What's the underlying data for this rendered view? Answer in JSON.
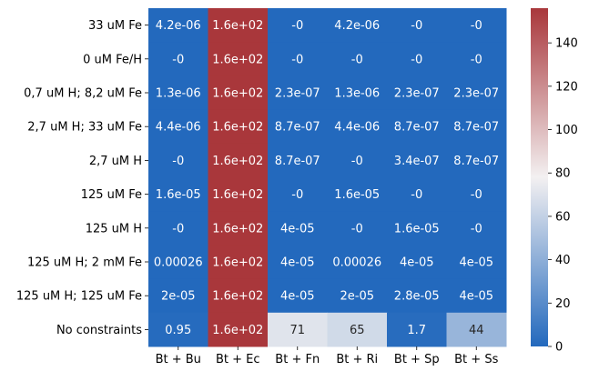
{
  "chart_data": {
    "type": "heatmap",
    "title": "",
    "xlabel": "",
    "ylabel": "",
    "x": [
      "Bt + Bu",
      "Bt + Ec",
      "Bt + Fn",
      "Bt + Ri",
      "Bt + Sp",
      "Bt + Ss"
    ],
    "y": [
      "33 uM Fe",
      "0 uM Fe/H",
      "0,7 uM H; 8,2 uM Fe",
      "2,7 uM H; 33 uM Fe",
      "2,7 uM H",
      "125 uM Fe",
      "125 uM H",
      "125 uM H; 2 mM Fe",
      "125 uM H; 125 uM Fe",
      "No constraints"
    ],
    "values": [
      [
        4.2e-06,
        160,
        0,
        4.2e-06,
        0,
        0
      ],
      [
        0,
        160,
        0,
        0,
        0,
        0
      ],
      [
        1.3e-06,
        160,
        2.3e-07,
        1.3e-06,
        2.3e-07,
        2.3e-07
      ],
      [
        4.4e-06,
        160,
        8.7e-07,
        4.4e-06,
        8.7e-07,
        8.7e-07
      ],
      [
        0,
        160,
        8.7e-07,
        0,
        3.4e-07,
        8.7e-07
      ],
      [
        1.6e-05,
        160,
        0,
        1.6e-05,
        0,
        0
      ],
      [
        0,
        160,
        4e-05,
        0,
        1.6e-05,
        0
      ],
      [
        0.00026,
        160,
        4e-05,
        0.00026,
        4e-05,
        4e-05
      ],
      [
        2e-05,
        160,
        4e-05,
        2e-05,
        2.8e-05,
        4e-05
      ],
      [
        0.95,
        160,
        71,
        65,
        1.7,
        44
      ]
    ],
    "annotations": [
      [
        "4.2e-06",
        "1.6e+02",
        "-0",
        "4.2e-06",
        "-0",
        "-0"
      ],
      [
        "-0",
        "1.6e+02",
        "-0",
        "-0",
        "-0",
        "-0"
      ],
      [
        "1.3e-06",
        "1.6e+02",
        "2.3e-07",
        "1.3e-06",
        "2.3e-07",
        "2.3e-07"
      ],
      [
        "4.4e-06",
        "1.6e+02",
        "8.7e-07",
        "4.4e-06",
        "8.7e-07",
        "8.7e-07"
      ],
      [
        "-0",
        "1.6e+02",
        "8.7e-07",
        "-0",
        "3.4e-07",
        "8.7e-07"
      ],
      [
        "1.6e-05",
        "1.6e+02",
        "-0",
        "1.6e-05",
        "-0",
        "-0"
      ],
      [
        "-0",
        "1.6e+02",
        "4e-05",
        "-0",
        "1.6e-05",
        "-0"
      ],
      [
        "0.00026",
        "1.6e+02",
        "4e-05",
        "0.00026",
        "4e-05",
        "4e-05"
      ],
      [
        "2e-05",
        "1.6e+02",
        "4e-05",
        "2e-05",
        "2.8e-05",
        "4e-05"
      ],
      [
        "0.95",
        "1.6e+02",
        "71",
        "65",
        "1.7",
        "44"
      ]
    ],
    "colorbar": {
      "range": [
        0,
        156
      ],
      "ticks": [
        0,
        20,
        40,
        60,
        80,
        100,
        120,
        140
      ],
      "colormap": "vlag",
      "low_color": "#2369bd",
      "mid_color": "#f3f0f1",
      "high_color": "#a9373b"
    },
    "grid": false,
    "legend": "colorbar-right"
  }
}
